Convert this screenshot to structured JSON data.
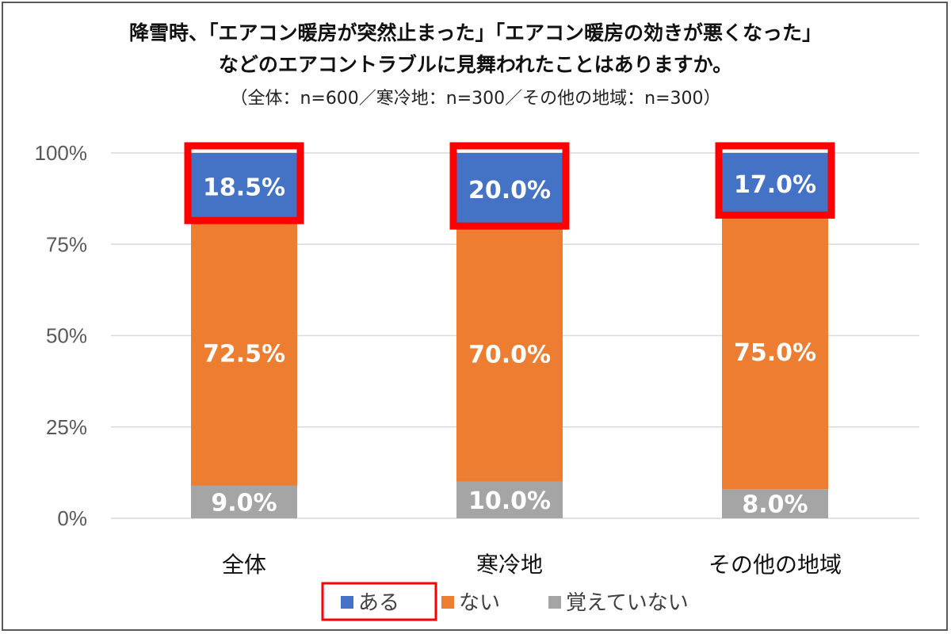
{
  "title": {
    "line1": "降雪時、「エアコン暖房が突然止まった」「エアコン暖房の効きが悪くなった」",
    "line2": "などのエアコントラブルに見舞われたことはありますか。",
    "line3": "（全体：n=600／寒冷地：n=300／その他の地域：n=300）"
  },
  "chart_data": {
    "type": "bar",
    "stacked": true,
    "categories": [
      "全体",
      "寒冷地",
      "その他の地域"
    ],
    "series": [
      {
        "name": "覚えていない",
        "values": [
          9.0,
          10.0,
          8.0
        ],
        "color": "#a5a5a5"
      },
      {
        "name": "ない",
        "values": [
          72.5,
          70.0,
          75.0
        ],
        "color": "#ed7d31"
      },
      {
        "name": "ある",
        "values": [
          18.5,
          20.0,
          17.0
        ],
        "color": "#4472c4"
      }
    ],
    "value_labels": [
      [
        "9.0%",
        "10.0%",
        "8.0%"
      ],
      [
        "72.5%",
        "70.0%",
        "75.0%"
      ],
      [
        "18.5%",
        "20.0%",
        "17.0%"
      ]
    ],
    "ylim": [
      0,
      100
    ],
    "yticks": [
      0,
      25,
      50,
      75,
      100
    ],
    "ytick_labels": [
      "0%",
      "25%",
      "50%",
      "75%",
      "100%"
    ],
    "grid": true,
    "legend": {
      "position": "bottom",
      "order": [
        "ある",
        "ない",
        "覚えていない"
      ],
      "highlighted": "ある"
    },
    "highlight_series": "ある",
    "highlight_color": "#ff0000"
  }
}
